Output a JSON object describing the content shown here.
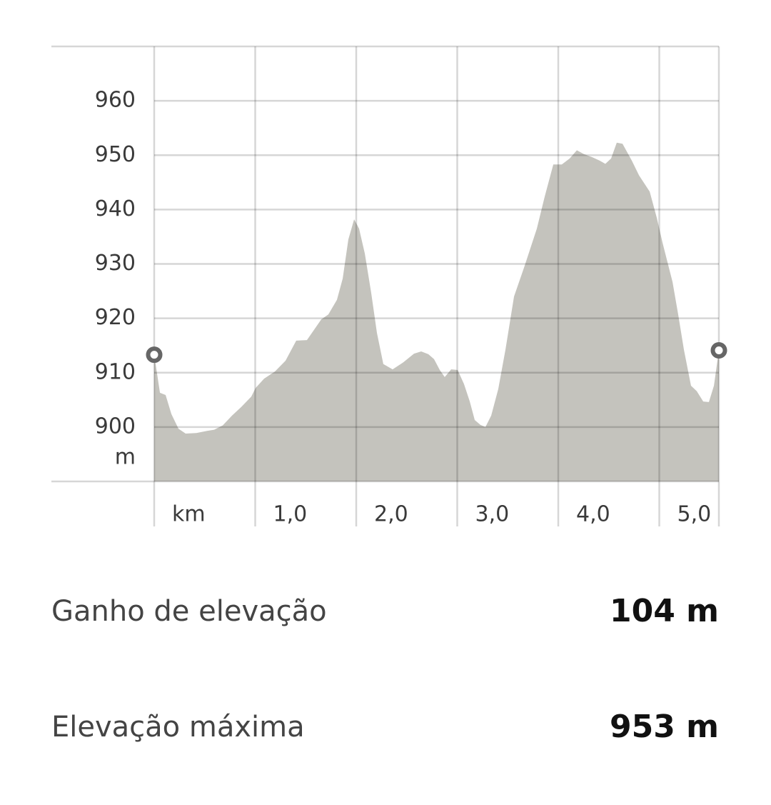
{
  "chart_data": {
    "type": "area",
    "color": "#c4c3bd",
    "grid": true,
    "y_unit": "m",
    "x": [
      0,
      0.057,
      0.113,
      0.17,
      0.24,
      0.311,
      0.417,
      0.523,
      0.594,
      0.678,
      0.77,
      0.862,
      0.961,
      1.004,
      1.088,
      1.194,
      1.3,
      1.406,
      1.512,
      1.583,
      1.654,
      1.724,
      1.809,
      1.866,
      1.922,
      1.979,
      2.028,
      2.085,
      2.148,
      2.205,
      2.268,
      2.36,
      2.466,
      2.572,
      2.643,
      2.714,
      2.77,
      2.827,
      2.876,
      2.94,
      3.004,
      3.067,
      3.124,
      3.173,
      3.23,
      3.279,
      3.336,
      3.406,
      3.477,
      3.562,
      3.668,
      3.788,
      3.866,
      3.951,
      4.035,
      4.113,
      4.184,
      4.254,
      4.339,
      4.41,
      4.466,
      4.523,
      4.579,
      4.636,
      4.728,
      4.799,
      4.905,
      4.975,
      5.032,
      5.131,
      5.187,
      5.244,
      5.314,
      5.371,
      5.435,
      5.491,
      5.541,
      5.59
    ],
    "values": [
      913.3,
      906.3,
      905.9,
      902.4,
      899.7,
      898.8,
      898.9,
      899.3,
      899.5,
      900.3,
      902.1,
      903.7,
      905.6,
      907.2,
      908.9,
      910.2,
      912.2,
      915.9,
      916.0,
      917.9,
      919.8,
      920.7,
      923.4,
      927.3,
      934.5,
      938.2,
      936.5,
      931.9,
      924.7,
      917.3,
      911.6,
      910.6,
      911.9,
      913.5,
      913.9,
      913.4,
      912.5,
      910.5,
      909.2,
      910.6,
      910.5,
      907.9,
      904.7,
      901.3,
      900.4,
      900.0,
      902.1,
      907.0,
      914.2,
      924.0,
      929.7,
      936.5,
      942.4,
      948.3,
      948.3,
      949.4,
      950.9,
      950.2,
      949.6,
      949.0,
      948.4,
      949.4,
      952.3,
      952.1,
      949.0,
      946.3,
      943.3,
      938.5,
      933.9,
      926.7,
      920.7,
      914.2,
      907.6,
      906.6,
      904.7,
      904.6,
      907.6,
      914.1
    ],
    "xlim": [
      0,
      5.59
    ],
    "ylim": [
      890,
      970
    ],
    "xticks": [
      {
        "value": 0,
        "label": "km"
      },
      {
        "value": 1,
        "label": "1,0"
      },
      {
        "value": 2,
        "label": "2,0"
      },
      {
        "value": 3,
        "label": "3,0"
      },
      {
        "value": 4,
        "label": "4,0"
      },
      {
        "value": 5,
        "label": "5,0"
      }
    ],
    "yticks": [
      900,
      910,
      920,
      930,
      940,
      950,
      960
    ]
  },
  "stats": [
    {
      "label": "Ganho de elevação",
      "value": "104 m"
    },
    {
      "label": "Elevação máxima",
      "value": "953 m"
    }
  ]
}
